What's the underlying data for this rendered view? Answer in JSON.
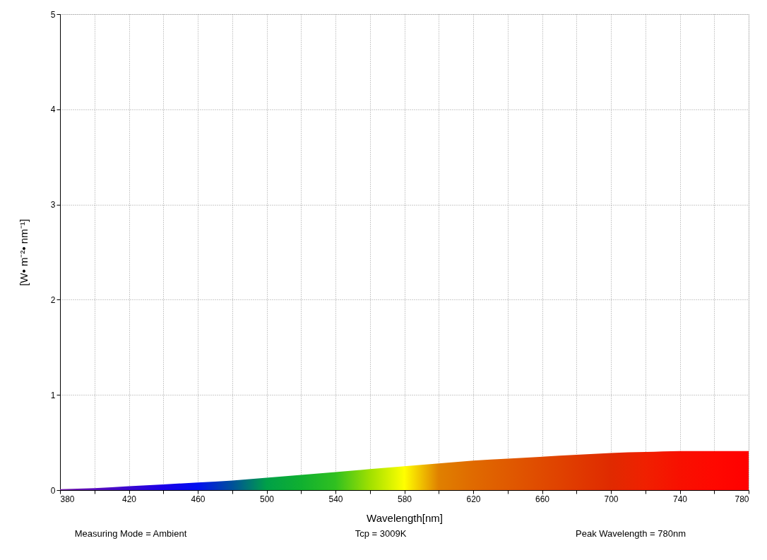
{
  "chart_data": {
    "type": "area",
    "xlabel": "Wavelength[nm]",
    "ylabel": "[W• m⁻²• nm⁻¹]",
    "x": [
      380,
      400,
      420,
      440,
      460,
      480,
      500,
      520,
      540,
      560,
      580,
      600,
      620,
      640,
      660,
      680,
      700,
      720,
      740,
      760,
      780
    ],
    "series": [
      {
        "values": [
          0.01,
          0.02,
          0.04,
          0.06,
          0.08,
          0.1,
          0.13,
          0.16,
          0.19,
          0.22,
          0.25,
          0.28,
          0.31,
          0.33,
          0.35,
          0.37,
          0.39,
          0.4,
          0.41,
          0.41,
          0.41
        ],
        "colors": [
          "#7a1fb0",
          "#5a10c0",
          "#3a08d0",
          "#1a00e8",
          "#0010f0",
          "#00509a",
          "#00a048",
          "#10b030",
          "#30c020",
          "#a0e000",
          "#ffff00",
          "#e08000",
          "#e06a00",
          "#e05a00",
          "#e04a00",
          "#e03a00",
          "#e02a00",
          "#f02000",
          "#f81000",
          "#ff0800",
          "#ff0000"
        ]
      }
    ],
    "xlim": [
      380,
      780
    ],
    "ylim": [
      0,
      5
    ],
    "xticks": [
      380,
      {
        "value": 400,
        "label": null
      },
      420,
      {
        "value": 440,
        "label": null
      },
      460,
      {
        "value": 480,
        "label": null
      },
      500,
      {
        "value": 520,
        "label": null
      },
      540,
      {
        "value": 560,
        "label": null
      },
      580,
      {
        "value": 600,
        "label": null
      },
      620,
      {
        "value": 640,
        "label": null
      },
      660,
      {
        "value": 680,
        "label": null
      },
      700,
      {
        "value": 720,
        "label": null
      },
      740,
      {
        "value": 760,
        "label": null
      },
      780
    ],
    "yticks": [
      0,
      1,
      2,
      3,
      4,
      5
    ],
    "grid": true,
    "annotations": [
      "Measuring Mode = Ambient",
      "Tcp = 3009K",
      "Peak Wavelength = 780nm"
    ]
  }
}
